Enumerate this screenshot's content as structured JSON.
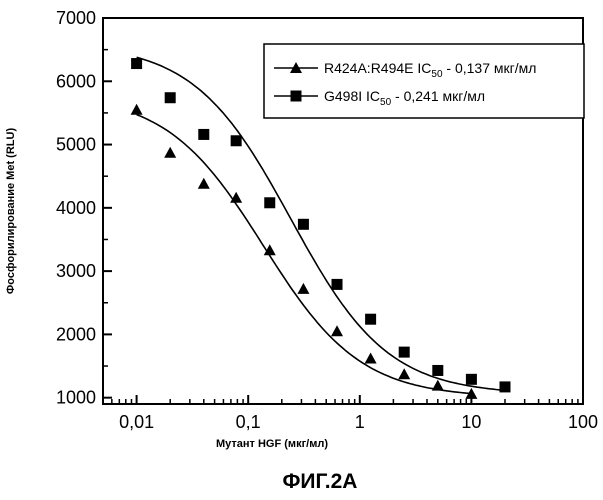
{
  "chart_data": {
    "type": "scatter",
    "title": "",
    "xlabel": "Мутант HGF (мкг/мл)",
    "ylabel": "Фосфорилирование Met (RLU)",
    "xscale": "log",
    "xlim": [
      0.005,
      100
    ],
    "ylim": [
      900,
      7000
    ],
    "x_ticks": [
      {
        "value": 0.01,
        "label": "0,01"
      },
      {
        "value": 0.1,
        "label": "0,1"
      },
      {
        "value": 1,
        "label": "1"
      },
      {
        "value": 10,
        "label": "10"
      },
      {
        "value": 100,
        "label": "100"
      }
    ],
    "y_ticks": [
      {
        "value": 1000,
        "label": "1000"
      },
      {
        "value": 2000,
        "label": "2000"
      },
      {
        "value": 3000,
        "label": "3000"
      },
      {
        "value": 4000,
        "label": "4000"
      },
      {
        "value": 5000,
        "label": "5000"
      },
      {
        "value": 6000,
        "label": "6000"
      },
      {
        "value": 7000,
        "label": "7000"
      }
    ],
    "grid": false,
    "legend_position": "top-right",
    "series": [
      {
        "name": "R424A:R494E",
        "legend_sub_prefix": "IC",
        "legend_sub": "50",
        "legend_value": " - 0,137 мкг/мл",
        "marker": "triangle",
        "points": [
          {
            "x": 0.01,
            "y": 5550
          },
          {
            "x": 0.02,
            "y": 4870
          },
          {
            "x": 0.04,
            "y": 4380
          },
          {
            "x": 0.078,
            "y": 4160
          },
          {
            "x": 0.156,
            "y": 3330
          },
          {
            "x": 0.3125,
            "y": 2720
          },
          {
            "x": 0.625,
            "y": 2050
          },
          {
            "x": 1.25,
            "y": 1620
          },
          {
            "x": 2.5,
            "y": 1370
          },
          {
            "x": 5,
            "y": 1190
          },
          {
            "x": 10,
            "y": 1060
          }
        ],
        "fit": {
          "bottom": 1000,
          "top": 5800,
          "ec50": 0.137,
          "hill": 1.0
        }
      },
      {
        "name": "G498I",
        "legend_sub_prefix": "IC",
        "legend_sub": "50",
        "legend_value": " - 0,241 мкг/мл",
        "marker": "square",
        "points": [
          {
            "x": 0.01,
            "y": 6280
          },
          {
            "x": 0.02,
            "y": 5740
          },
          {
            "x": 0.04,
            "y": 5160
          },
          {
            "x": 0.078,
            "y": 5060
          },
          {
            "x": 0.156,
            "y": 4080
          },
          {
            "x": 0.3125,
            "y": 3740
          },
          {
            "x": 0.625,
            "y": 2790
          },
          {
            "x": 1.25,
            "y": 2240
          },
          {
            "x": 2.5,
            "y": 1720
          },
          {
            "x": 5,
            "y": 1430
          },
          {
            "x": 10,
            "y": 1290
          },
          {
            "x": 20,
            "y": 1170
          }
        ],
        "fit": {
          "bottom": 1050,
          "top": 6600,
          "ec50": 0.241,
          "hill": 1.0
        }
      }
    ]
  },
  "figure_caption": "ФИГ.2А"
}
